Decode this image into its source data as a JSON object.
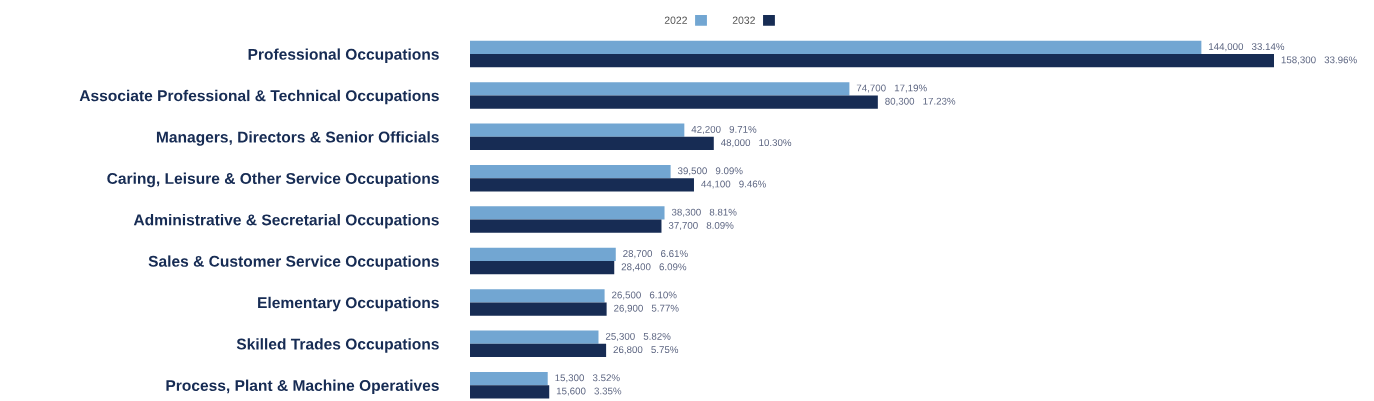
{
  "chart_data": {
    "type": "bar",
    "orientation": "horizontal",
    "legend": "top",
    "grid": false,
    "categories": [
      "Professional Occupations",
      "Associate Professional & Technical Occupations",
      "Managers, Directors & Senior Officials",
      "Caring, Leisure & Other Service Occupations",
      "Administrative & Secretarial Occupations",
      "Sales & Customer Service Occupations",
      "Elementary Occupations",
      "Skilled Trades Occupations",
      "Process, Plant & Machine Operatives"
    ],
    "series": [
      {
        "name": "2022",
        "color": "#72a6d2",
        "values": [
          144000,
          74700,
          42200,
          39500,
          38300,
          28700,
          26500,
          25300,
          15300
        ],
        "value_labels": [
          "144,000   33.14%",
          "74,700   17,19%",
          "42,200   9.71%",
          "39,500   9.09%",
          "38,300   8.81%",
          "28,700   6.61%",
          "26,500   6.10%",
          "25,300   5.82%",
          "15,300   3.52%"
        ]
      },
      {
        "name": "2032",
        "color": "#172c54",
        "values": [
          158300,
          80300,
          48000,
          44100,
          37700,
          28400,
          26900,
          26800,
          15600
        ],
        "value_labels": [
          "158,300   33.96%",
          "80,300   17.23%",
          "48,000   10.30%",
          "44,100   9.46%",
          "37,700   8.09%",
          "28,400   6.09%",
          "26,900   5.77%",
          "26,800   5.75%",
          "15,600   3.35%"
        ]
      }
    ]
  }
}
